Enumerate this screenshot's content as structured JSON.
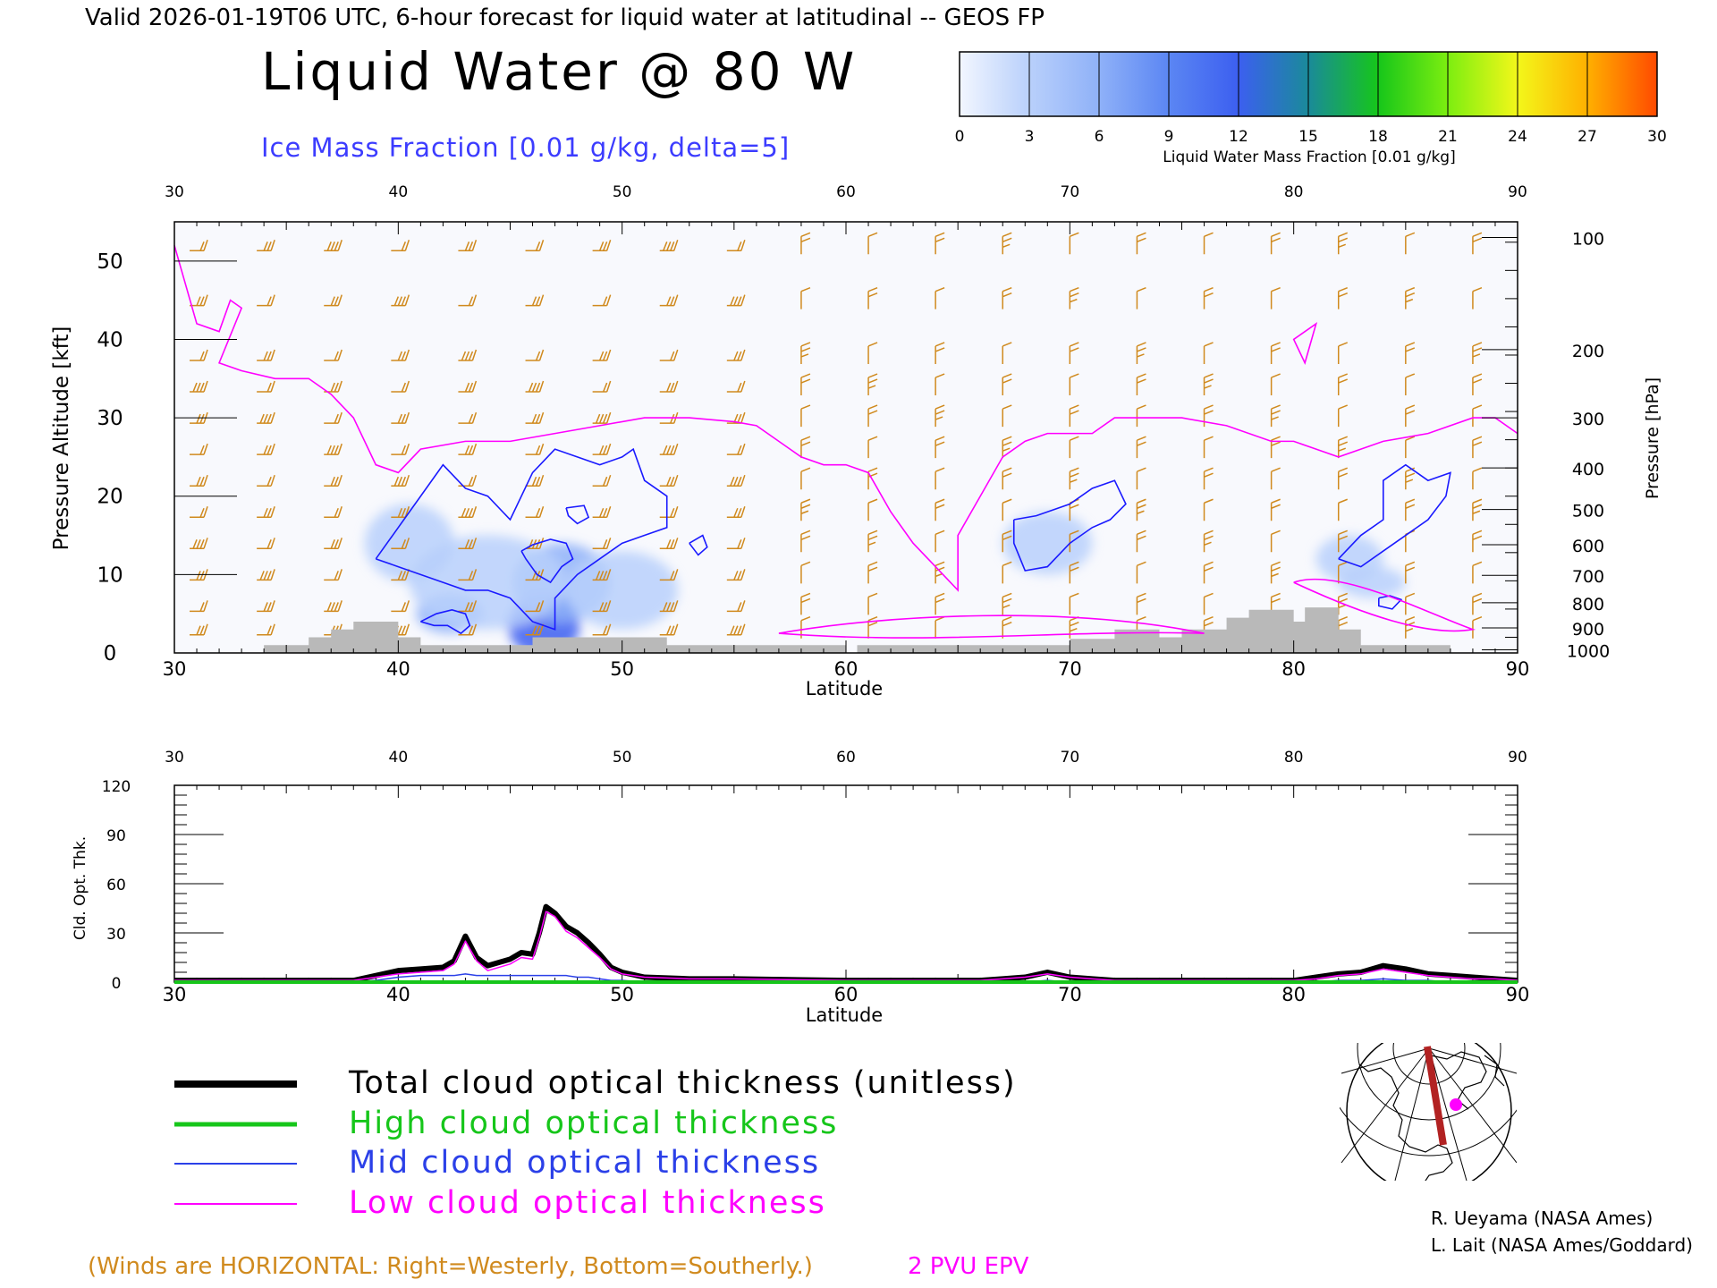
{
  "header": {
    "valid_line": "Valid 2026-01-19T06 UTC, 6-hour forecast for liquid water at latitudinal -- GEOS FP",
    "main_title": "Liquid Water @ 80 W",
    "subtitle": "Ice Mass Fraction [0.01 g/kg, delta=5]"
  },
  "colorbar": {
    "ticks": [
      "0",
      "3",
      "6",
      "9",
      "12",
      "15",
      "18",
      "21",
      "24",
      "27",
      "30"
    ],
    "label": "Liquid Water Mass Fraction [0.01 g/kg]",
    "colors": [
      "#f2f6ff",
      "#b9d0fb",
      "#8fb1f8",
      "#5b86f3",
      "#3c5ff0",
      "#1a8a9a",
      "#16c61a",
      "#7cee10",
      "#f3f71a",
      "#ffb000",
      "#ff4a00"
    ]
  },
  "chart_data": [
    {
      "type": "heatmap",
      "title": "Liquid Water @ 80 W",
      "xlabel": "Latitude",
      "ylabel": "Pressure Altitude [kft]",
      "ylabel_right": "Pressure [hPa]",
      "xlim": [
        30,
        90
      ],
      "ylim": [
        0,
        55
      ],
      "x_ticks": [
        "30",
        "40",
        "50",
        "60",
        "70",
        "80",
        "90"
      ],
      "y_ticks": [
        "0",
        "10",
        "20",
        "30",
        "40",
        "50"
      ],
      "right_ticks": [
        {
          "label": "100",
          "kft": 53
        },
        {
          "label": "200",
          "kft": 38.7
        },
        {
          "label": "300",
          "kft": 30
        },
        {
          "label": "400",
          "kft": 23.6
        },
        {
          "label": "500",
          "kft": 18.3
        },
        {
          "label": "600",
          "kft": 13.8
        },
        {
          "label": "700",
          "kft": 9.9
        },
        {
          "label": "800",
          "kft": 6.4
        },
        {
          "label": "900",
          "kft": 3.2
        },
        {
          "label": "1000",
          "kft": 0.4
        }
      ],
      "terrain": [
        [
          34,
          0
        ],
        [
          34,
          1
        ],
        [
          36,
          1
        ],
        [
          36,
          2
        ],
        [
          37,
          2
        ],
        [
          37,
          3
        ],
        [
          38,
          3
        ],
        [
          38,
          4
        ],
        [
          40,
          4
        ],
        [
          40,
          2
        ],
        [
          41,
          2
        ],
        [
          41,
          1
        ],
        [
          46,
          1
        ],
        [
          46,
          2
        ],
        [
          52,
          2
        ],
        [
          52,
          1
        ],
        [
          60,
          1
        ],
        [
          60,
          0
        ],
        [
          60.5,
          0
        ],
        [
          60.5,
          1
        ],
        [
          70,
          1
        ],
        [
          70,
          1.8
        ],
        [
          72,
          1.8
        ],
        [
          72,
          3
        ],
        [
          74,
          3
        ],
        [
          74,
          2
        ],
        [
          75,
          2
        ],
        [
          75,
          3
        ],
        [
          77,
          3
        ],
        [
          77,
          4.5
        ],
        [
          78,
          4.5
        ],
        [
          78,
          5.5
        ],
        [
          80,
          5.5
        ],
        [
          80,
          4
        ],
        [
          80.5,
          4
        ],
        [
          80.5,
          5.8
        ],
        [
          82,
          5.8
        ],
        [
          82,
          3
        ],
        [
          83,
          3
        ],
        [
          83,
          1
        ],
        [
          87,
          1
        ],
        [
          87,
          0
        ]
      ],
      "pv2_line": [
        [
          30,
          52
        ],
        [
          31,
          42
        ],
        [
          32,
          41
        ],
        [
          32.5,
          45
        ],
        [
          33,
          44
        ],
        [
          32,
          37
        ],
        [
          33,
          36
        ],
        [
          34.5,
          35
        ],
        [
          36,
          35
        ],
        [
          37,
          33
        ],
        [
          38,
          30
        ],
        [
          39,
          24
        ],
        [
          40,
          23
        ],
        [
          41,
          26
        ],
        [
          43,
          27
        ],
        [
          45,
          27
        ],
        [
          47,
          28
        ],
        [
          49,
          29
        ],
        [
          51,
          30
        ],
        [
          53,
          30
        ],
        [
          55,
          29.5
        ],
        [
          56,
          29
        ],
        [
          57,
          27
        ],
        [
          58,
          25
        ],
        [
          59,
          24
        ],
        [
          60,
          24
        ],
        [
          61,
          23
        ],
        [
          62,
          18
        ],
        [
          63,
          14
        ],
        [
          64,
          11
        ],
        [
          65,
          8
        ],
        [
          65,
          15
        ],
        [
          66,
          20
        ],
        [
          67,
          25
        ],
        [
          68,
          27
        ],
        [
          69,
          28
        ],
        [
          71,
          28
        ],
        [
          72,
          30
        ],
        [
          75,
          30
        ],
        [
          77,
          29
        ],
        [
          79,
          27
        ],
        [
          80,
          27
        ],
        [
          81,
          26
        ],
        [
          82,
          25
        ],
        [
          84,
          27
        ],
        [
          86,
          28
        ],
        [
          88,
          30
        ],
        [
          89,
          30
        ],
        [
          90,
          28
        ]
      ],
      "ice_contours": [
        [
          [
            39,
            12
          ],
          [
            40,
            16
          ],
          [
            41,
            20
          ],
          [
            42,
            24
          ],
          [
            43,
            21
          ],
          [
            44,
            20
          ],
          [
            45,
            17
          ],
          [
            46,
            23
          ],
          [
            47,
            26
          ],
          [
            48,
            25
          ],
          [
            49,
            24
          ],
          [
            50,
            25
          ],
          [
            50.5,
            26
          ],
          [
            51,
            22
          ],
          [
            52,
            20
          ],
          [
            52,
            16
          ],
          [
            51,
            15
          ],
          [
            50,
            14
          ],
          [
            49,
            12
          ],
          [
            48,
            10
          ],
          [
            47,
            7
          ],
          [
            47,
            3
          ],
          [
            46,
            4
          ],
          [
            45,
            7
          ],
          [
            44,
            8
          ],
          [
            43,
            8
          ],
          [
            42,
            9
          ],
          [
            41,
            10
          ],
          [
            40,
            11
          ],
          [
            39,
            12
          ]
        ],
        [
          [
            45.5,
            13
          ],
          [
            46,
            13.8
          ],
          [
            46.8,
            14.5
          ],
          [
            47.5,
            14
          ],
          [
            47.8,
            12
          ],
          [
            47.3,
            11
          ],
          [
            46.8,
            9
          ],
          [
            46.2,
            10
          ],
          [
            45.7,
            12
          ],
          [
            45.5,
            13
          ]
        ],
        [
          [
            47.5,
            18.5
          ],
          [
            48.3,
            18.8
          ],
          [
            48.5,
            17.3
          ],
          [
            48,
            16.5
          ],
          [
            47.6,
            17.5
          ],
          [
            47.5,
            18.5
          ]
        ],
        [
          [
            53,
            14
          ],
          [
            53.6,
            15
          ],
          [
            53.8,
            13.5
          ],
          [
            53.4,
            12.5
          ],
          [
            53,
            14
          ]
        ],
        [
          [
            41,
            4
          ],
          [
            41.7,
            5
          ],
          [
            42.4,
            5.5
          ],
          [
            43,
            5
          ],
          [
            43.2,
            3.5
          ],
          [
            42.8,
            2.5
          ],
          [
            42.2,
            3.5
          ],
          [
            41.6,
            3.5
          ],
          [
            41,
            4
          ]
        ],
        [
          [
            67.5,
            17
          ],
          [
            68.5,
            17.5
          ],
          [
            70,
            19
          ],
          [
            71,
            21
          ],
          [
            72,
            22
          ],
          [
            72.5,
            19
          ],
          [
            71.8,
            17
          ],
          [
            71,
            16
          ],
          [
            70,
            14
          ],
          [
            69,
            11
          ],
          [
            68,
            10.5
          ],
          [
            67.5,
            14
          ],
          [
            67.5,
            17
          ]
        ],
        [
          [
            82,
            12
          ],
          [
            83,
            15
          ],
          [
            84,
            17
          ],
          [
            84,
            22
          ],
          [
            85,
            24
          ],
          [
            86,
            22
          ],
          [
            87,
            23
          ],
          [
            86.8,
            20
          ],
          [
            86,
            17
          ],
          [
            85,
            15
          ],
          [
            84,
            13
          ],
          [
            83,
            11
          ],
          [
            82,
            12
          ]
        ],
        [
          [
            83.8,
            7
          ],
          [
            84.3,
            7.3
          ],
          [
            84.8,
            6.8
          ],
          [
            84.4,
            5.6
          ],
          [
            83.8,
            6
          ],
          [
            83.8,
            7
          ]
        ]
      ],
      "liquid_blobs": [
        {
          "lat": 46.5,
          "kft": 3.5,
          "rx": 1.6,
          "ry": 4,
          "level": 12
        },
        {
          "lat": 47.3,
          "kft": 9,
          "rx": 2.2,
          "ry": 5,
          "level": 6
        },
        {
          "lat": 42.3,
          "kft": 5,
          "rx": 1.5,
          "ry": 2.5,
          "level": 6
        },
        {
          "lat": 44,
          "kft": 9,
          "rx": 3.5,
          "ry": 6,
          "level": 3
        },
        {
          "lat": 50,
          "kft": 8,
          "rx": 2.5,
          "ry": 5,
          "level": 3
        },
        {
          "lat": 40.5,
          "kft": 14,
          "rx": 2,
          "ry": 5,
          "level": 3
        },
        {
          "lat": 69,
          "kft": 14,
          "rx": 2,
          "ry": 4,
          "level": 3
        },
        {
          "lat": 82.5,
          "kft": 12,
          "rx": 1.5,
          "ry": 3,
          "level": 3
        },
        {
          "lat": 83.5,
          "kft": 9,
          "rx": 1.5,
          "ry": 2,
          "level": 3
        }
      ]
    },
    {
      "type": "line",
      "xlabel": "Latitude",
      "ylabel": "Cld. Opt. Thk.",
      "xlim": [
        30,
        90
      ],
      "ylim": [
        0,
        120
      ],
      "x_ticks": [
        "30",
        "40",
        "50",
        "60",
        "70",
        "80",
        "90"
      ],
      "y_ticks": [
        "0",
        "30",
        "60",
        "90",
        "120"
      ],
      "x": [
        30,
        38,
        39,
        40,
        41,
        42,
        42.5,
        43,
        43.5,
        44,
        45,
        45.5,
        46,
        46.3,
        46.6,
        47,
        47.5,
        48,
        48.5,
        49,
        49.5,
        50,
        51,
        53,
        55,
        60,
        66,
        67,
        68,
        69,
        70,
        71,
        72,
        80,
        81,
        82,
        83,
        84,
        85,
        86,
        87,
        88,
        89,
        90
      ],
      "series": [
        {
          "name": "Total cloud optical thickness (unitless)",
          "color": "#000000",
          "values": [
            1,
            1,
            4,
            7,
            8,
            9,
            13,
            28,
            15,
            10,
            14,
            18,
            17,
            30,
            46,
            42,
            34,
            30,
            24,
            17,
            9,
            6,
            3,
            2,
            2,
            1,
            1,
            2,
            3,
            6,
            3,
            2,
            1,
            1,
            3,
            5,
            6,
            10,
            8,
            5,
            4,
            3,
            2,
            1
          ]
        },
        {
          "name": "High cloud optical thickness",
          "color": "#16c61a",
          "values": [
            0,
            0,
            0,
            0,
            0,
            0,
            0,
            0,
            0,
            0,
            0,
            0,
            0,
            0,
            0,
            0,
            0,
            0,
            0,
            0,
            0,
            0,
            0,
            0,
            0,
            0,
            0,
            0,
            0,
            0,
            0,
            0,
            0,
            0,
            0,
            0,
            0,
            0,
            0,
            0,
            0,
            0,
            0,
            0
          ]
        },
        {
          "name": "Mid cloud optical thickness",
          "color": "#2b40e8",
          "values": [
            0,
            0,
            1,
            3,
            4,
            4,
            4,
            5,
            4,
            4,
            4,
            4,
            4,
            4,
            4,
            4,
            4,
            3,
            3,
            2,
            1,
            1,
            0,
            0,
            0,
            0,
            0,
            0,
            0,
            1,
            0,
            0,
            0,
            0,
            0,
            1,
            1,
            2,
            1,
            1,
            0,
            0,
            0,
            0
          ]
        },
        {
          "name": "Low cloud optical thickness",
          "color": "#ff00ff",
          "values": [
            1,
            1,
            3,
            5,
            6,
            7,
            11,
            25,
            13,
            7,
            11,
            15,
            14,
            27,
            43,
            40,
            31,
            27,
            21,
            15,
            8,
            5,
            3,
            2,
            2,
            1,
            1,
            2,
            3,
            5,
            3,
            2,
            1,
            1,
            2,
            4,
            5,
            8,
            6,
            4,
            3,
            2,
            2,
            1
          ]
        }
      ]
    }
  ],
  "legend": {
    "total_label": "Total cloud optical thickness (unitless)",
    "high_label": "High cloud optical thickness",
    "mid_label": "Mid cloud optical thickness",
    "low_label": "Low cloud optical thickness",
    "pv_label": "2 PVU EPV"
  },
  "footer": {
    "winds_note": "(Winds are HORIZONTAL: Right=Westerly, Bottom=Southerly.)",
    "credit1": "R. Ueyama (NASA Ames)",
    "credit2": "L. Lait (NASA Ames/Goddard)"
  },
  "colors": {
    "winds": "#d08a1e",
    "pv": "#ff00ff",
    "ice": "#1a1aff",
    "terrain": "#b9b9b9",
    "subtitle": "#3c3cff"
  }
}
